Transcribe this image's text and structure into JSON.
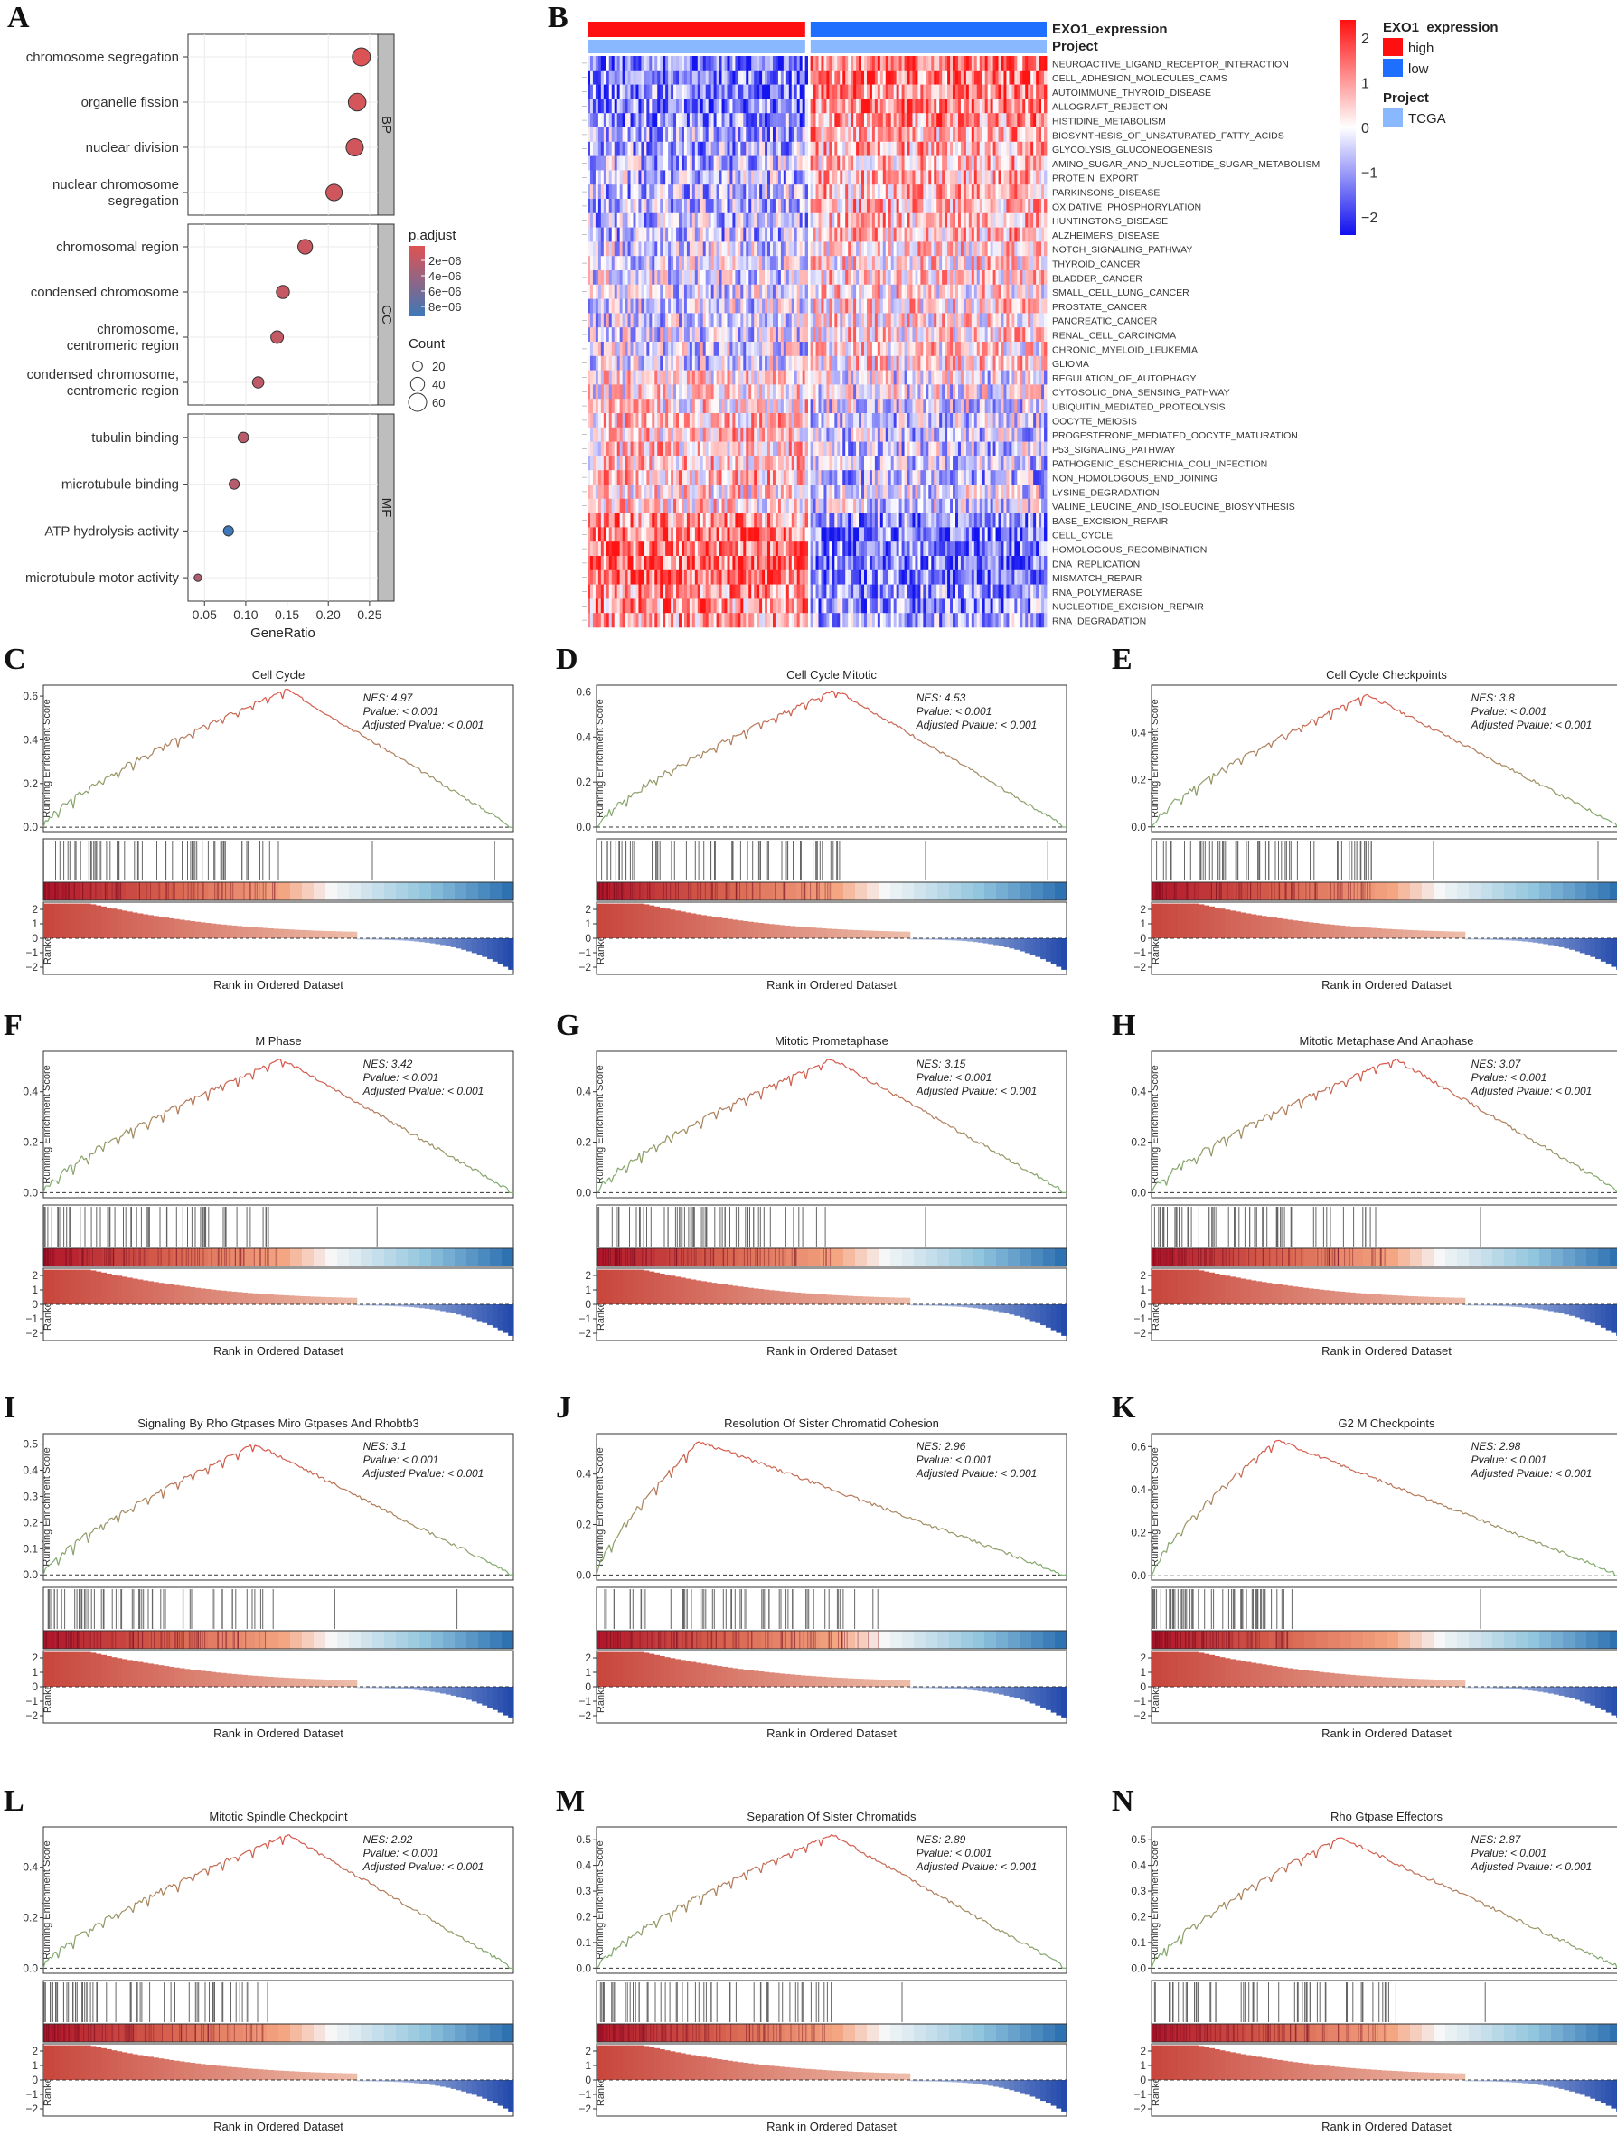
{
  "panel_letters": [
    "A",
    "B",
    "C",
    "D",
    "E",
    "F",
    "G",
    "H",
    "I",
    "J",
    "K",
    "L",
    "M",
    "N"
  ],
  "chart_data": [
    {
      "id": "A",
      "type": "scatter",
      "xlabel": "GeneRatio",
      "xticks": [
        "0.05",
        "0.10",
        "0.15",
        "0.20",
        "0.25"
      ],
      "xtick_values": [
        0.05,
        0.1,
        0.15,
        0.2,
        0.25
      ],
      "xlim": [
        0.03,
        0.26
      ],
      "facets": [
        {
          "label": "BP",
          "terms": [
            {
              "term": [
                "chromosome segregation"
              ],
              "x": 0.24,
              "count": 60,
              "padj": 1.2e-06
            },
            {
              "term": [
                "organelle fission"
              ],
              "x": 0.235,
              "count": 58,
              "padj": 1.6e-06
            },
            {
              "term": [
                "nuclear division"
              ],
              "x": 0.232,
              "count": 56,
              "padj": 1.8e-06
            },
            {
              "term": [
                "nuclear chromosome",
                "segregation"
              ],
              "x": 0.207,
              "count": 52,
              "padj": 1.9e-06
            }
          ]
        },
        {
          "label": "CC",
          "terms": [
            {
              "term": [
                "chromosomal region"
              ],
              "x": 0.172,
              "count": 44,
              "padj": 2.1e-06
            },
            {
              "term": [
                "condensed chromosome"
              ],
              "x": 0.145,
              "count": 36,
              "padj": 2.3e-06
            },
            {
              "term": [
                "chromosome,",
                "centromeric region"
              ],
              "x": 0.138,
              "count": 34,
              "padj": 2.4e-06
            },
            {
              "term": [
                "condensed chromosome,",
                "centromeric region"
              ],
              "x": 0.115,
              "count": 28,
              "padj": 2.6e-06
            }
          ]
        },
        {
          "label": "MF",
          "terms": [
            {
              "term": [
                "tubulin binding"
              ],
              "x": 0.097,
              "count": 24,
              "padj": 2.9e-06
            },
            {
              "term": [
                "microtubule binding"
              ],
              "x": 0.086,
              "count": 22,
              "padj": 3.1e-06
            },
            {
              "term": [
                "ATP hydrolysis activity"
              ],
              "x": 0.079,
              "count": 22,
              "padj": 9e-06
            },
            {
              "term": [
                "microtubule motor activity"
              ],
              "x": 0.042,
              "count": 10,
              "padj": 3.4e-06
            }
          ]
        }
      ],
      "legend": {
        "color_title": "p.adjust",
        "color_ticks": [
          "2e−06",
          "4e−06",
          "6e−06",
          "8e−06"
        ],
        "size_title": "Count",
        "size_ticks": [
          "20",
          "40",
          "60"
        ],
        "colors": {
          "low": "#e05252",
          "high": "#3d78b8"
        }
      }
    },
    {
      "id": "B",
      "type": "heatmap",
      "annotation_rows": [
        "EXO1_expression",
        "Project"
      ],
      "high_fraction": 0.48,
      "rows": [
        "NEUROACTIVE_LIGAND_RECEPTOR_INTERACTION",
        "CELL_ADHESION_MOLECULES_CAMS",
        "AUTOIMMUNE_THYROID_DISEASE",
        "ALLOGRAFT_REJECTION",
        "HISTIDINE_METABOLISM",
        "BIOSYNTHESIS_OF_UNSATURATED_FATTY_ACIDS",
        "GLYCOLYSIS_GLUCONEOGENESIS",
        "AMINO_SUGAR_AND_NUCLEOTIDE_SUGAR_METABOLISM",
        "PROTEIN_EXPORT",
        "PARKINSONS_DISEASE",
        "OXIDATIVE_PHOSPHORYLATION",
        "HUNTINGTONS_DISEASE",
        "ALZHEIMERS_DISEASE",
        "NOTCH_SIGNALING_PATHWAY",
        "THYROID_CANCER",
        "BLADDER_CANCER",
        "SMALL_CELL_LUNG_CANCER",
        "PROSTATE_CANCER",
        "PANCREATIC_CANCER",
        "RENAL_CELL_CARCINOMA",
        "CHRONIC_MYELOID_LEUKEMIA",
        "GLIOMA",
        "REGULATION_OF_AUTOPHAGY",
        "CYTOSOLIC_DNA_SENSING_PATHWAY",
        "UBIQUITIN_MEDIATED_PROTEOLYSIS",
        "OOCYTE_MEIOSIS",
        "PROGESTERONE_MEDIATED_OOCYTE_MATURATION",
        "P53_SIGNALING_PATHWAY",
        "PATHOGENIC_ESCHERICHIA_COLI_INFECTION",
        "NON_HOMOLOGOUS_END_JOINING",
        "LYSINE_DEGRADATION",
        "VALINE_LEUCINE_AND_ISOLEUCINE_BIOSYNTHESIS",
        "BASE_EXCISION_REPAIR",
        "CELL_CYCLE",
        "HOMOLOGOUS_RECOMBINATION",
        "DNA_REPLICATION",
        "MISMATCH_REPAIR",
        "RNA_POLYMERASE",
        "NUCLEOTIDE_EXCISION_REPAIR",
        "RNA_DEGRADATION"
      ],
      "row_bias": [
        -0.8,
        -0.8,
        -0.7,
        -0.7,
        -0.6,
        -0.5,
        -0.5,
        -0.4,
        -0.4,
        -0.4,
        -0.4,
        -0.4,
        -0.4,
        -0.2,
        -0.2,
        -0.2,
        -0.2,
        -0.2,
        -0.2,
        -0.2,
        -0.2,
        -0.2,
        0.1,
        0.1,
        0.2,
        0.3,
        0.3,
        0.3,
        0.3,
        0.4,
        0.2,
        0.2,
        0.6,
        0.8,
        0.8,
        0.8,
        0.8,
        0.6,
        0.6,
        0.5
      ],
      "colorbar": {
        "ticks": [
          "2",
          "1",
          "0",
          "−1",
          "−2"
        ],
        "values": [
          2,
          1,
          0,
          -1,
          -2
        ],
        "range": [
          -2.4,
          2.4
        ]
      },
      "legend": {
        "title1": "EXO1_expression",
        "items1": [
          {
            "label": "high",
            "color": "#ff1010"
          },
          {
            "label": "low",
            "color": "#1f6fff"
          }
        ],
        "title2": "Project",
        "items2": [
          {
            "label": "TCGA",
            "color": "#8ab8ff"
          }
        ]
      }
    }
  ],
  "gsea": {
    "ylabel": "Running Enrichment Score",
    "ranked_label": "Ranked List",
    "xlabel": "Rank in Ordered Dataset",
    "ranked_ticks": [
      "2",
      "1",
      "0",
      "−1",
      "−2"
    ],
    "panels": [
      {
        "id": "C",
        "title": "Cell Cycle",
        "nes": "NES: 4.97",
        "pval": "Pvalue: < 0.001",
        "adj": "Adjusted Pvalue: < 0.001",
        "peak": 0.63,
        "ymax": 0.65,
        "yticks": [
          "0.0",
          "0.2",
          "0.4",
          "0.6"
        ],
        "ytick_values": [
          0,
          0.2,
          0.4,
          0.6
        ],
        "peak_x": 0.52,
        "hits_end": 0.5,
        "seed": 3,
        "extra_hits": [
          0.7,
          0.96
        ]
      },
      {
        "id": "D",
        "title": "Cell Cycle Mitotic",
        "nes": "NES: 4.53",
        "pval": "Pvalue: < 0.001",
        "adj": "Adjusted Pvalue: < 0.001",
        "peak": 0.61,
        "ymax": 0.63,
        "yticks": [
          "0.0",
          "0.2",
          "0.4",
          "0.6"
        ],
        "ytick_values": [
          0,
          0.2,
          0.4,
          0.6
        ],
        "peak_x": 0.51,
        "hits_end": 0.52,
        "seed": 7,
        "extra_hits": [
          0.7,
          0.96
        ]
      },
      {
        "id": "E",
        "title": "Cell Cycle Checkpoints",
        "nes": "NES: 3.8",
        "pval": "Pvalue: < 0.001",
        "adj": "Adjusted Pvalue: < 0.001",
        "peak": 0.56,
        "ymax": 0.6,
        "yticks": [
          "0.0",
          "0.2",
          "0.4"
        ],
        "ytick_values": [
          0,
          0.2,
          0.4
        ],
        "peak_x": 0.46,
        "hits_end": 0.48,
        "seed": 11,
        "extra_hits": [
          0.6,
          0.95
        ]
      },
      {
        "id": "F",
        "title": "M Phase",
        "nes": "NES: 3.42",
        "pval": "Pvalue: < 0.001",
        "adj": "Adjusted Pvalue: < 0.001",
        "peak": 0.53,
        "ymax": 0.56,
        "yticks": [
          "0.0",
          "0.2",
          "0.4"
        ],
        "ytick_values": [
          0,
          0.2,
          0.4
        ],
        "peak_x": 0.51,
        "hits_end": 0.5,
        "seed": 13,
        "extra_hits": [
          0.71
        ]
      },
      {
        "id": "G",
        "title": "Mitotic Prometaphase",
        "nes": "NES: 3.15",
        "pval": "Pvalue: < 0.001",
        "adj": "Adjusted Pvalue: < 0.001",
        "peak": 0.53,
        "ymax": 0.56,
        "yticks": [
          "0.0",
          "0.2",
          "0.4"
        ],
        "ytick_values": [
          0,
          0.2,
          0.4
        ],
        "peak_x": 0.5,
        "hits_end": 0.5,
        "seed": 17,
        "extra_hits": [
          0.7
        ]
      },
      {
        "id": "H",
        "title": "Mitotic Metaphase And Anaphase",
        "nes": "NES: 3.07",
        "pval": "Pvalue: < 0.001",
        "adj": "Adjusted Pvalue: < 0.001",
        "peak": 0.53,
        "ymax": 0.56,
        "yticks": [
          "0.0",
          "0.2",
          "0.4"
        ],
        "ytick_values": [
          0,
          0.2,
          0.4
        ],
        "peak_x": 0.52,
        "hits_end": 0.5,
        "seed": 19,
        "extra_hits": [
          0.7
        ]
      },
      {
        "id": "I",
        "title": "Signaling By Rho Gtpases Miro Gtpases And Rhobtb3",
        "nes": "NES: 3.1",
        "pval": "Pvalue: < 0.001",
        "adj": "Adjusted Pvalue: < 0.001",
        "peak": 0.5,
        "ymax": 0.54,
        "yticks": [
          "0.0",
          "0.1",
          "0.2",
          "0.3",
          "0.4",
          "0.5"
        ],
        "ytick_values": [
          0,
          0.1,
          0.2,
          0.3,
          0.4,
          0.5
        ],
        "peak_x": 0.45,
        "hits_end": 0.5,
        "seed": 23,
        "extra_hits": [
          0.62,
          0.88
        ]
      },
      {
        "id": "J",
        "title": "Resolution Of Sister Chromatid Cohesion",
        "nes": "NES: 2.96",
        "pval": "Pvalue: < 0.001",
        "adj": "Adjusted Pvalue: < 0.001",
        "peak": 0.53,
        "ymax": 0.56,
        "yticks": [
          "0.0",
          "0.2",
          "0.4"
        ],
        "ytick_values": [
          0,
          0.2,
          0.4
        ],
        "peak_x": 0.22,
        "hits_end": 0.6,
        "seed": 29,
        "extra_hits": []
      },
      {
        "id": "K",
        "title": "G2 M Checkpoints",
        "nes": "NES: 2.98",
        "pval": "Pvalue: < 0.001",
        "adj": "Adjusted Pvalue: < 0.001",
        "peak": 0.63,
        "ymax": 0.66,
        "yticks": [
          "0.0",
          "0.2",
          "0.4",
          "0.6"
        ],
        "ytick_values": [
          0,
          0.2,
          0.4,
          0.6
        ],
        "peak_x": 0.27,
        "hits_end": 0.3,
        "seed": 31,
        "extra_hits": [
          0.7
        ]
      },
      {
        "id": "L",
        "title": "Mitotic Spindle Checkpoint",
        "nes": "NES: 2.92",
        "pval": "Pvalue: < 0.001",
        "adj": "Adjusted Pvalue: < 0.001",
        "peak": 0.53,
        "ymax": 0.56,
        "yticks": [
          "0.0",
          "0.2",
          "0.4"
        ],
        "ytick_values": [
          0,
          0.2,
          0.4
        ],
        "peak_x": 0.52,
        "hits_end": 0.48,
        "seed": 37,
        "extra_hits": []
      },
      {
        "id": "M",
        "title": "Separation Of Sister Chromatids",
        "nes": "NES: 2.89",
        "pval": "Pvalue: < 0.001",
        "adj": "Adjusted Pvalue: < 0.001",
        "peak": 0.52,
        "ymax": 0.55,
        "yticks": [
          "0.0",
          "0.1",
          "0.2",
          "0.3",
          "0.4",
          "0.5"
        ],
        "ytick_values": [
          0,
          0.1,
          0.2,
          0.3,
          0.4,
          0.5
        ],
        "peak_x": 0.5,
        "hits_end": 0.5,
        "seed": 41,
        "extra_hits": [
          0.65
        ]
      },
      {
        "id": "N",
        "title": "Rho Gtpase Effectors",
        "nes": "NES: 2.87",
        "pval": "Pvalue: < 0.001",
        "adj": "Adjusted Pvalue: < 0.001",
        "peak": 0.51,
        "ymax": 0.55,
        "yticks": [
          "0.0",
          "0.1",
          "0.2",
          "0.3",
          "0.4",
          "0.5"
        ],
        "ytick_values": [
          0,
          0.1,
          0.2,
          0.3,
          0.4,
          0.5
        ],
        "peak_x": 0.4,
        "hits_end": 0.52,
        "seed": 43,
        "extra_hits": [
          0.71
        ]
      }
    ]
  }
}
